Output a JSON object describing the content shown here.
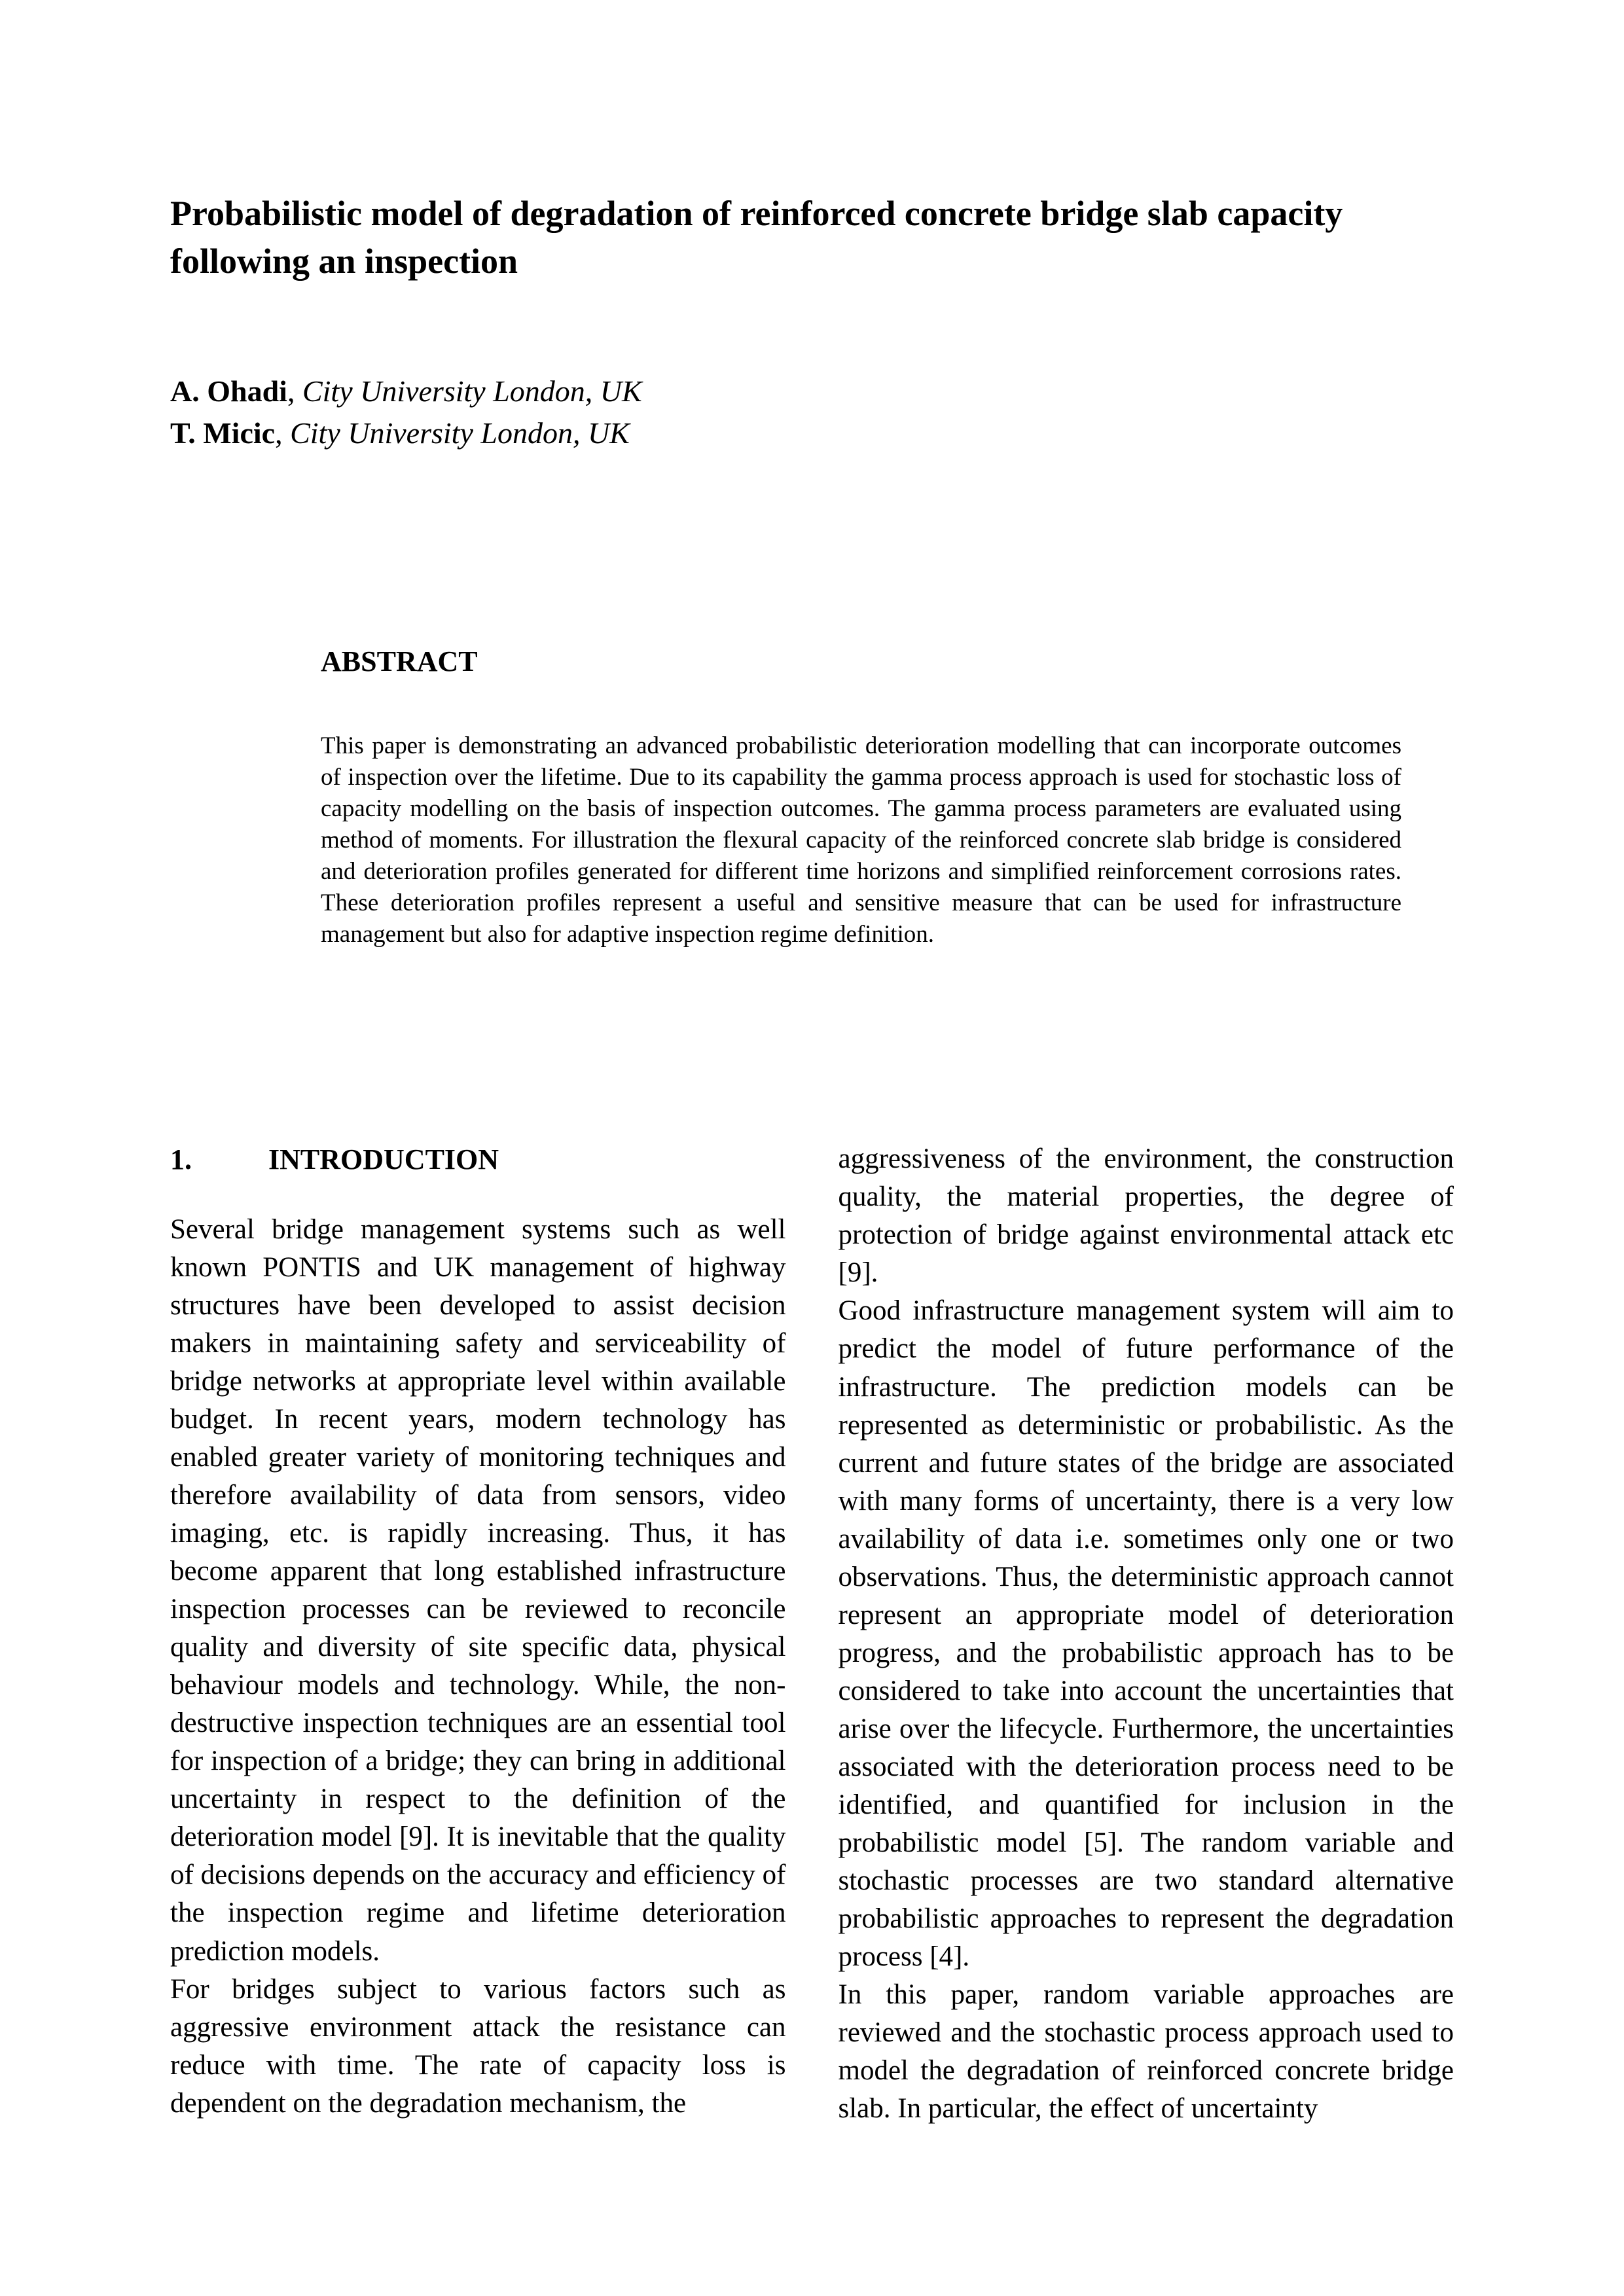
{
  "title": "Probabilistic model of degradation of reinforced concrete bridge slab capacity following an inspection",
  "authors": [
    {
      "name": "A. Ohadi",
      "affiliation": "City University London, UK"
    },
    {
      "name": "T. Micic",
      "affiliation": "City University London, UK"
    }
  ],
  "abstract": {
    "heading": "ABSTRACT",
    "text": "This paper is demonstrating an advanced probabilistic deterioration modelling that can incorporate outcomes of inspection over the lifetime. Due to its capability the gamma process approach is used for stochastic loss of capacity modelling on the basis of inspection outcomes. The gamma process parameters are evaluated using method of moments. For illustration the flexural capacity of the reinforced concrete slab bridge is considered and deterioration profiles generated for different time horizons and simplified reinforcement corrosions rates. These deterioration profiles represent a useful and sensitive measure that can be used for infrastructure management but also for adaptive inspection regime definition."
  },
  "sections": [
    {
      "number": "1.",
      "heading": "INTRODUCTION"
    }
  ],
  "body": {
    "col1_p1": "Several bridge management systems such as well known PONTIS and UK management of highway structures have been developed to assist decision makers in maintaining safety and serviceability of bridge networks at appropriate level within available budget. In recent years, modern technology has enabled greater variety of monitoring techniques and therefore availability of data from sensors, video imaging, etc. is rapidly increasing. Thus, it has become apparent that long established infrastructure inspection processes can be reviewed to reconcile quality and diversity of site specific data, physical behaviour models and technology. While, the non-destructive inspection techniques are an essential tool for inspection of a bridge; they can bring in additional uncertainty in respect to the definition of the deterioration model [9]. It is inevitable that the quality of decisions depends on the accuracy and efficiency of the inspection regime and lifetime deterioration prediction models.",
    "col1_p2": "For bridges subject to various factors such as aggressive environment attack the resistance can reduce with time. The rate of capacity loss is dependent on the degradation mechanism, the",
    "col2_p1": "aggressiveness of the environment, the construction quality, the material properties, the degree of protection of bridge against environmental attack etc [9].",
    "col2_p2": "Good infrastructure management system will aim to predict the model of future performance of the infrastructure. The prediction models can be represented as deterministic or probabilistic. As the current and future states of the bridge are associated with many forms of uncertainty, there is a very low availability of data i.e. sometimes only one or two observations. Thus, the deterministic approach cannot represent an appropriate model of deterioration progress, and the probabilistic approach has to be considered to take into account the uncertainties that arise over the lifecycle. Furthermore, the uncertainties associated with the deterioration process need to be identified, and quantified for inclusion in the probabilistic model [5]. The random variable and stochastic processes are two standard alternative probabilistic approaches to represent the degradation process [4].",
    "col2_p3": "In this paper, random variable approaches are reviewed and the stochastic process approach used to model the degradation of reinforced concrete bridge slab. In particular, the effect of uncertainty"
  },
  "styling": {
    "page_bg": "#ffffff",
    "text_color": "#000000",
    "font_family": "Times New Roman",
    "title_fontsize": 54,
    "author_fontsize": 46,
    "abstract_heading_fontsize": 44,
    "abstract_text_fontsize": 37,
    "body_fontsize": 43,
    "section_heading_fontsize": 44
  }
}
